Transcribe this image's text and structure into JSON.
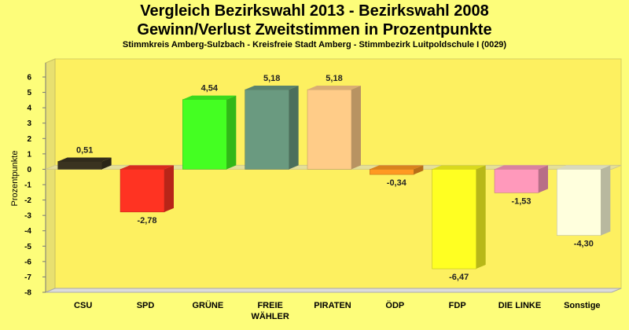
{
  "chart_data": {
    "type": "bar",
    "title_line1": "Vergleich Bezirkswahl 2013 - Bezirkswahl 2008",
    "title_line2": "Gewinn/Verlust Zweitstimmen in Prozentpunkte",
    "subtitle": "Stimmkreis Amberg-Sulzbach - Kreisfreie Stadt Amberg - Stimmbezirk Luitpoldschule I (0029)",
    "ylabel": "Prozentpunkte",
    "xlabel": "",
    "ylim": [
      -8,
      6
    ],
    "yticks": [
      6,
      5,
      4,
      3,
      2,
      1,
      0,
      -1,
      -2,
      -3,
      -4,
      -5,
      -6,
      -7,
      -8
    ],
    "categories": [
      {
        "label_lines": [
          "CSU"
        ],
        "value": 0.51,
        "value_label": "0,51",
        "color": "#3a3320"
      },
      {
        "label_lines": [
          "SPD"
        ],
        "value": -2.78,
        "value_label": "-2,78",
        "color": "#ff3322"
      },
      {
        "label_lines": [
          "GRÜNE"
        ],
        "value": 4.54,
        "value_label": "4,54",
        "color": "#44ff22"
      },
      {
        "label_lines": [
          "FREIE",
          "WÄHLER"
        ],
        "value": 5.18,
        "value_label": "5,18",
        "color": "#6a9a80"
      },
      {
        "label_lines": [
          "PIRATEN"
        ],
        "value": 5.18,
        "value_label": "5,18",
        "color": "#ffcc88"
      },
      {
        "label_lines": [
          "ÖDP"
        ],
        "value": -0.34,
        "value_label": "-0,34",
        "color": "#ff9922"
      },
      {
        "label_lines": [
          "FDP"
        ],
        "value": -6.47,
        "value_label": "-6,47",
        "color": "#ffff22"
      },
      {
        "label_lines": [
          "DIE LINKE"
        ],
        "value": -1.53,
        "value_label": "-1,53",
        "color": "#ff99bb"
      },
      {
        "label_lines": [
          "Sonstige"
        ],
        "value": -4.3,
        "value_label": "-4,30",
        "color": "#ffffdd"
      }
    ],
    "grid": false,
    "legend": "none"
  }
}
